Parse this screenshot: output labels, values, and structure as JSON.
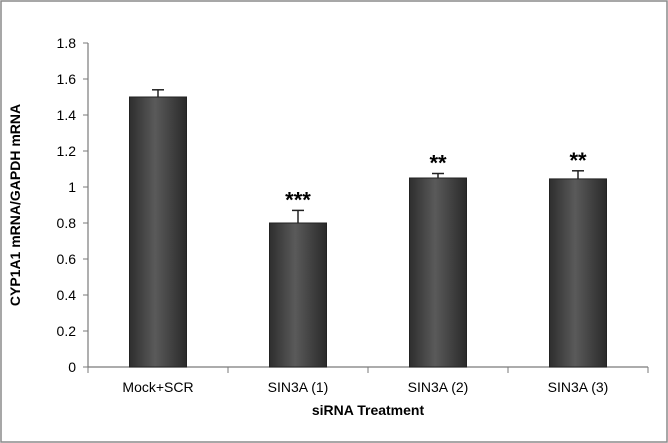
{
  "chart_data": {
    "type": "bar",
    "title": "",
    "xlabel": "siRNA Treatment",
    "ylabel": "CYP1A1 mRNA/GAPDH mRNA",
    "categories": [
      "Mock+SCR",
      "SIN3A (1)",
      "SIN3A (2)",
      "SIN3A (3)"
    ],
    "values": [
      1.5,
      0.8,
      1.05,
      1.045
    ],
    "error": [
      0.04,
      0.07,
      0.025,
      0.045
    ],
    "annotations": [
      "",
      "***",
      "**",
      "**"
    ],
    "ylim": [
      0,
      1.8
    ],
    "yticks": [
      "0",
      "0.2",
      "0.4",
      "0.6",
      "0.8",
      "1",
      "1.2",
      "1.4",
      "1.6",
      "1.8"
    ],
    "grid": false,
    "legend": "none",
    "bar_color": "#4a4a4a"
  }
}
